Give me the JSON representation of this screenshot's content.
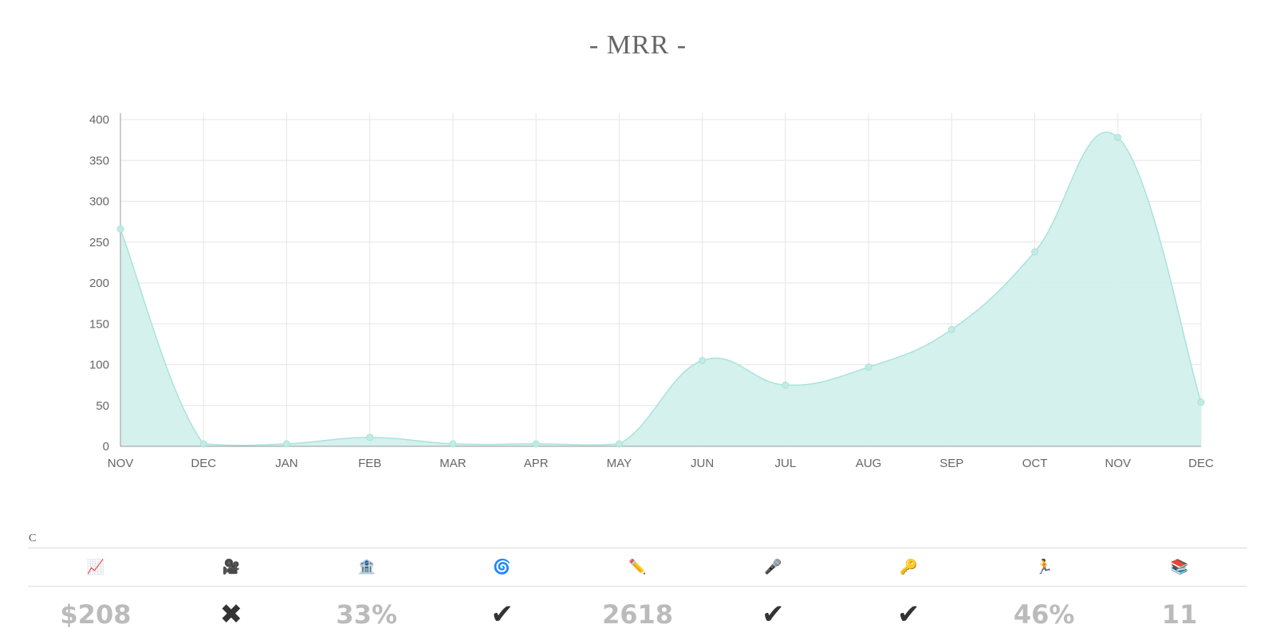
{
  "title": "- MRR -",
  "chart_data": {
    "type": "area",
    "categories": [
      "NOV",
      "DEC",
      "JAN",
      "FEB",
      "MAR",
      "APR",
      "MAY",
      "JUN",
      "JUL",
      "AUG",
      "SEP",
      "OCT",
      "NOV",
      "DEC"
    ],
    "values": [
      266,
      3,
      3,
      11,
      3,
      3,
      3,
      105,
      75,
      97,
      143,
      238,
      378,
      54
    ],
    "ylim": [
      0,
      400
    ],
    "yticks": [
      0,
      50,
      100,
      150,
      200,
      250,
      300,
      350,
      400
    ],
    "grid": true,
    "legend": "none",
    "colors": {
      "fill": "#d3f0ec",
      "line": "#a8e3da",
      "point": "#c2ebe4",
      "grid": "#e6e6e6",
      "axis": "#999999"
    }
  },
  "section_letter": "C",
  "stats": [
    {
      "icon": "📈",
      "icon_name": "chart-increasing-icon",
      "value": "$208",
      "kind": "text"
    },
    {
      "icon": "🎥",
      "icon_name": "movie-camera-icon",
      "value": "✖",
      "kind": "mark"
    },
    {
      "icon": "🏦",
      "icon_name": "bank-icon",
      "value": "33%",
      "kind": "text"
    },
    {
      "icon": "🌀",
      "icon_name": "cyclone-icon",
      "value": "✔",
      "kind": "mark"
    },
    {
      "icon": "✏️",
      "icon_name": "pencil-icon",
      "value": "2618",
      "kind": "text"
    },
    {
      "icon": "🎤",
      "icon_name": "microphone-icon",
      "value": "✔",
      "kind": "mark"
    },
    {
      "icon": "🔑",
      "icon_name": "key-icon",
      "value": "✔",
      "kind": "mark"
    },
    {
      "icon": "🏃",
      "icon_name": "runner-icon",
      "value": "46%",
      "kind": "text"
    },
    {
      "icon": "📚",
      "icon_name": "books-icon",
      "value": "11",
      "kind": "text"
    }
  ]
}
